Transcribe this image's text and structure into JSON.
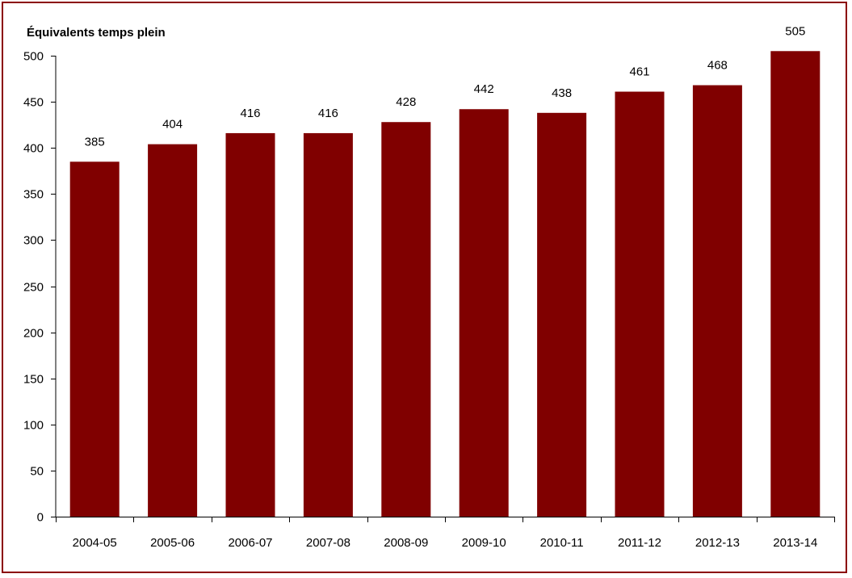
{
  "chart_data": {
    "type": "bar",
    "title": "",
    "xlabel": "",
    "ylabel": "Équivalents temps plein",
    "categories": [
      "2004-05",
      "2005-06",
      "2006-07",
      "2007-08",
      "2008-09",
      "2009-10",
      "2010-11",
      "2011-12",
      "2012-13",
      "2013-14"
    ],
    "values": [
      385,
      404,
      416,
      416,
      428,
      442,
      438,
      461,
      468,
      505
    ],
    "data_labels": [
      "385",
      "404",
      "416",
      "416",
      "428",
      "442",
      "438",
      "461",
      "468",
      "505"
    ],
    "ylim": [
      0,
      500
    ],
    "yticks": [
      "0",
      "50",
      "100",
      "150",
      "200",
      "250",
      "300",
      "350",
      "400",
      "450",
      "500"
    ],
    "grid": false,
    "legend": "none",
    "colors": {
      "bar": "#800000",
      "frame": "#8b0000",
      "axis": "#000000"
    }
  }
}
